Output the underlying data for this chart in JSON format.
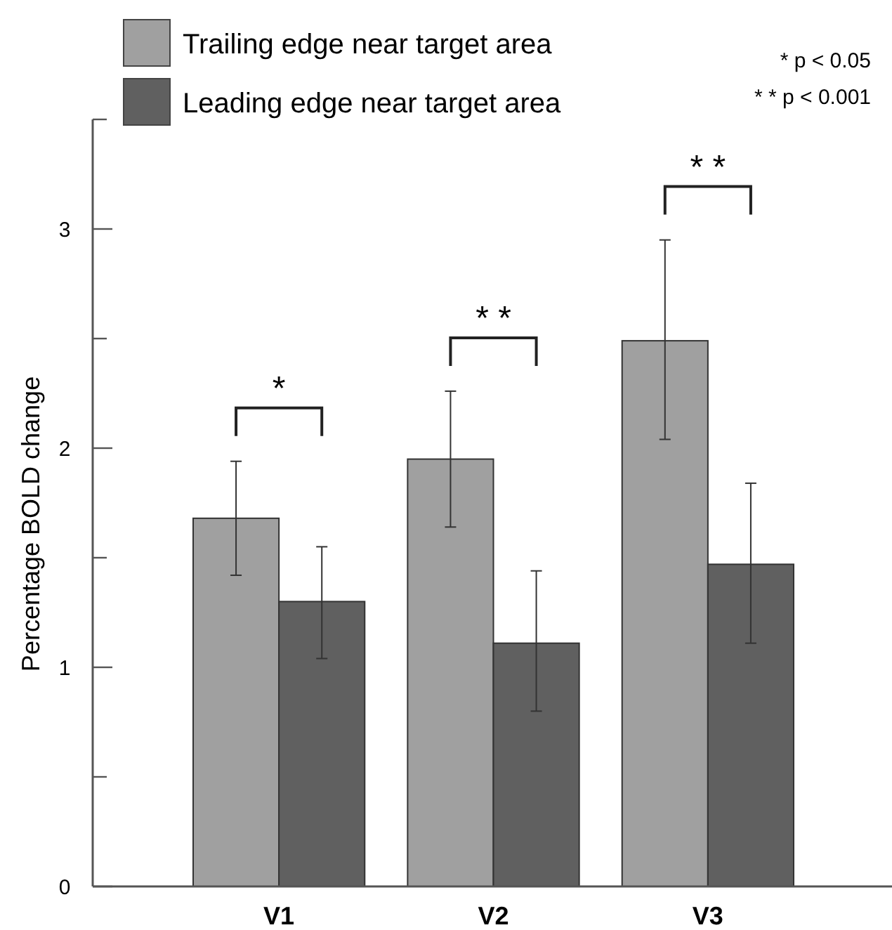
{
  "chart_data": {
    "type": "bar",
    "ylabel": "Percentage BOLD change",
    "categories": [
      "V1",
      "V2",
      "V3"
    ],
    "series": [
      {
        "name": "Trailing edge near target area",
        "color": "#a0a0a0",
        "values": [
          1.68,
          1.95,
          2.49
        ],
        "errors": [
          [
            1.42,
            1.94
          ],
          [
            1.64,
            2.26
          ],
          [
            2.04,
            2.95
          ]
        ]
      },
      {
        "name": "Leading edge near target area",
        "color": "#606060",
        "values": [
          1.3,
          1.11,
          1.47
        ],
        "errors": [
          [
            1.04,
            1.55
          ],
          [
            0.8,
            1.44
          ],
          [
            1.11,
            1.84
          ]
        ]
      }
    ],
    "ylim": [
      0,
      3.5
    ],
    "yticks": [
      0,
      {
        "value": 0.5,
        "label": null
      },
      1,
      {
        "value": 1.5,
        "label": null
      },
      2,
      {
        "value": 2.5,
        "label": null
      },
      3,
      {
        "value": 3.5,
        "label": null
      }
    ],
    "legend": "top left",
    "grid": false,
    "annotations": [
      "*",
      "* *",
      "* *",
      "*  p < 0.05",
      "* *  p < 0.001"
    ]
  }
}
